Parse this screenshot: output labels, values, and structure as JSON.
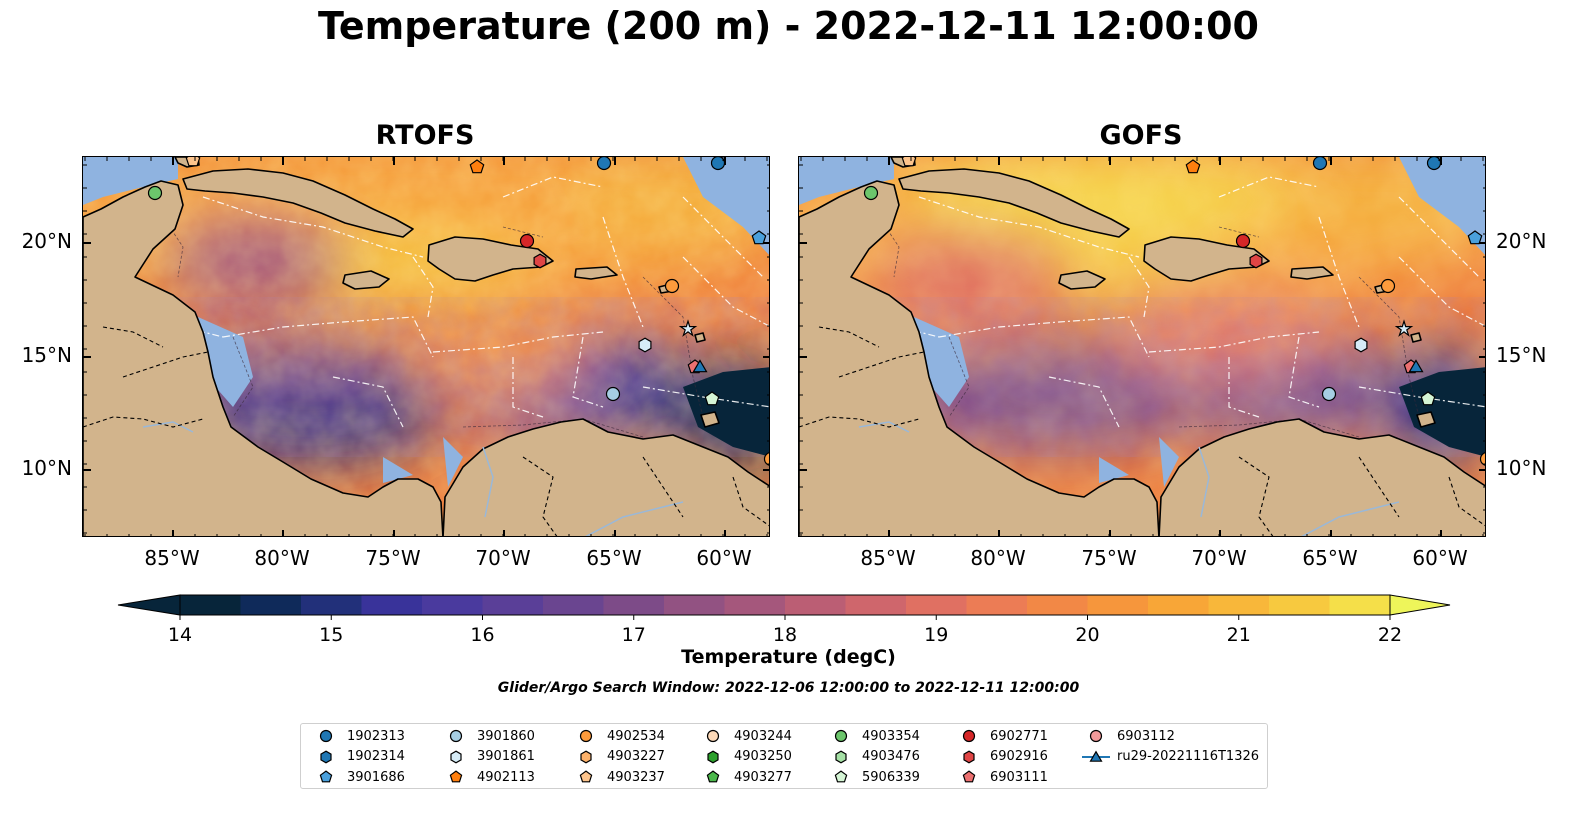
{
  "title": "Temperature (200 m) - 2022-12-11 12:00:00",
  "panels": [
    {
      "title": "RTOFS",
      "variant": "rtofs"
    },
    {
      "title": "GOFS",
      "variant": "gofs"
    }
  ],
  "lon_ticks": [
    "85°W",
    "80°W",
    "75°W",
    "70°W",
    "65°W",
    "60°W"
  ],
  "lat_ticks": [
    "20°N",
    "15°N",
    "10°N"
  ],
  "colorbar": {
    "label": "Temperature (degC)",
    "ticks": [
      "14",
      "15",
      "16",
      "17",
      "18",
      "19",
      "20",
      "21",
      "22"
    ],
    "colors": [
      "#07253a",
      "#0f2a5a",
      "#22307a",
      "#39339a",
      "#4a3a9e",
      "#5a3f98",
      "#6a4590",
      "#7d4b88",
      "#925282",
      "#a5577c",
      "#bb5e74",
      "#cf666c",
      "#e07062",
      "#ec7c55",
      "#f28846",
      "#f6963c",
      "#f8a637",
      "#f8b73a",
      "#f7c93f",
      "#f5df49",
      "#f0ef55"
    ],
    "under_color": "#07253a",
    "over_color": "#eef55a"
  },
  "search_window": "Glider/Argo Search Window: 2022-12-06 12:00:00 to 2022-12-11 12:00:00",
  "colors": {
    "land": "#d2b48c",
    "shelf": "#8fb3e0",
    "ocean_deep": "#07253a"
  },
  "legend": [
    {
      "label": "1902313",
      "marker": "circle",
      "color": "#1f77b4"
    },
    {
      "label": "1902314",
      "marker": "hexagon",
      "color": "#1f77b4"
    },
    {
      "label": "3901686",
      "marker": "pentagon",
      "color": "#4aa0dc"
    },
    {
      "label": "3901860",
      "marker": "circle",
      "color": "#a6cee3"
    },
    {
      "label": "3901861",
      "marker": "hexagon",
      "color": "#d6ecf7"
    },
    {
      "label": "4902113",
      "marker": "pentagon",
      "color": "#ff7f0e"
    },
    {
      "label": "4902534",
      "marker": "circle",
      "color": "#fd9b3c"
    },
    {
      "label": "4903227",
      "marker": "hexagon",
      "color": "#fdb26b"
    },
    {
      "label": "4903237",
      "marker": "pentagon",
      "color": "#fdc48c"
    },
    {
      "label": "4903244",
      "marker": "circle",
      "color": "#fdd9b8"
    },
    {
      "label": "4903250",
      "marker": "hexagon",
      "color": "#2ca02c"
    },
    {
      "label": "4903277",
      "marker": "pentagon",
      "color": "#4cb84c"
    },
    {
      "label": "4903354",
      "marker": "circle",
      "color": "#6cc66c"
    },
    {
      "label": "4903476",
      "marker": "hexagon",
      "color": "#a5e0a5"
    },
    {
      "label": "5906339",
      "marker": "pentagon",
      "color": "#d5f5d5"
    },
    {
      "label": "6902771",
      "marker": "circle",
      "color": "#d62728"
    },
    {
      "label": "6902916",
      "marker": "hexagon",
      "color": "#e04545"
    },
    {
      "label": "6903111",
      "marker": "pentagon",
      "color": "#ec7070"
    },
    {
      "label": "6903112",
      "marker": "circle",
      "color": "#f19a9a"
    },
    {
      "label": "ru29-20221116T1326",
      "marker": "triangle-line",
      "color": "#1f77b4"
    }
  ]
}
